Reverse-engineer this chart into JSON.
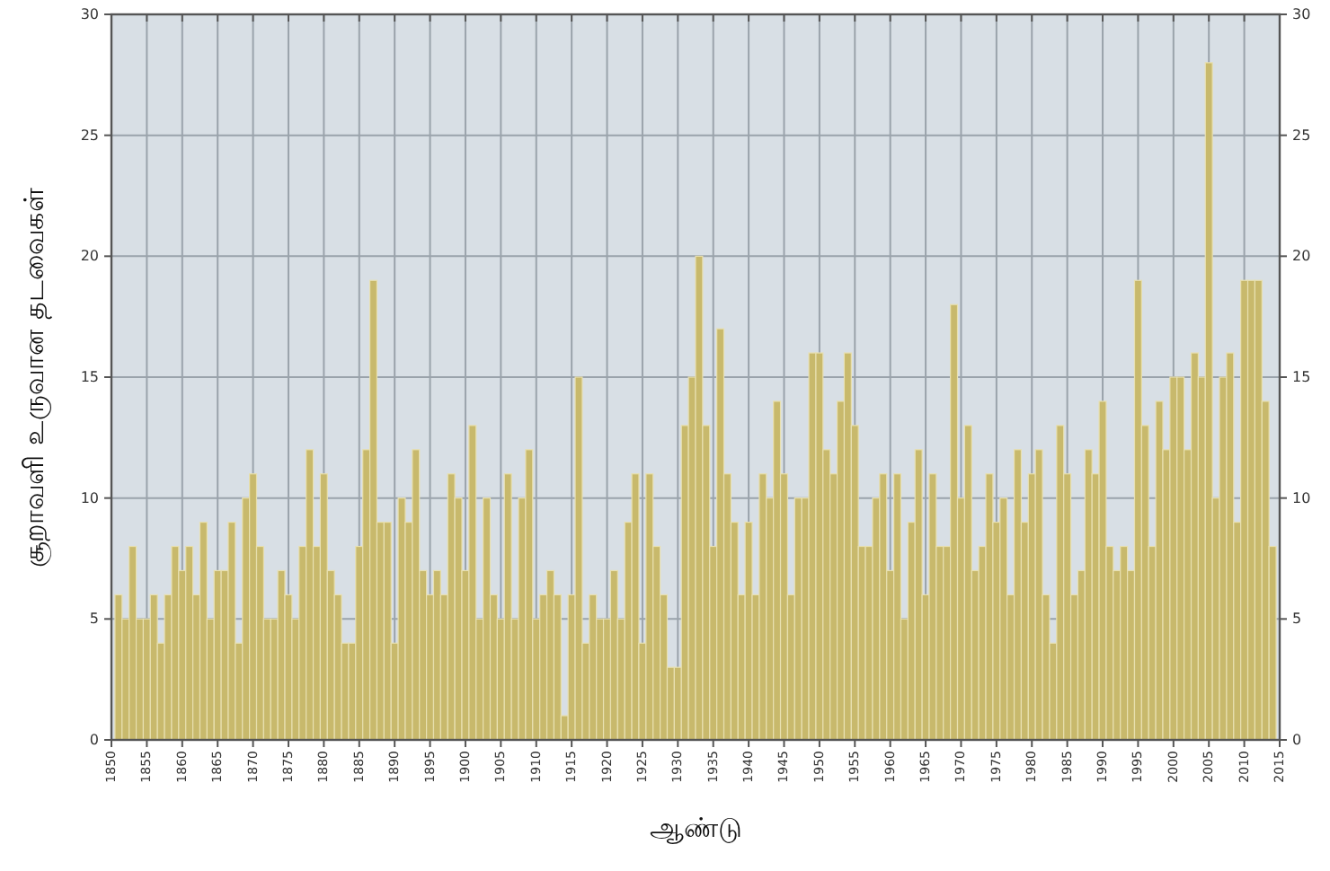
{
  "chart_data": {
    "type": "bar",
    "xlabel": "ஆண்டு",
    "ylabel": "சூறாவளி உருவான தடவைகள்",
    "x": [
      1851,
      1852,
      1853,
      1854,
      1855,
      1856,
      1857,
      1858,
      1859,
      1860,
      1861,
      1862,
      1863,
      1864,
      1865,
      1866,
      1867,
      1868,
      1869,
      1870,
      1871,
      1872,
      1873,
      1874,
      1875,
      1876,
      1877,
      1878,
      1879,
      1880,
      1881,
      1882,
      1883,
      1884,
      1885,
      1886,
      1887,
      1888,
      1889,
      1890,
      1891,
      1892,
      1893,
      1894,
      1895,
      1896,
      1897,
      1898,
      1899,
      1900,
      1901,
      1902,
      1903,
      1904,
      1905,
      1906,
      1907,
      1908,
      1909,
      1910,
      1911,
      1912,
      1913,
      1914,
      1915,
      1916,
      1917,
      1918,
      1919,
      1920,
      1921,
      1922,
      1923,
      1924,
      1925,
      1926,
      1927,
      1928,
      1929,
      1930,
      1931,
      1932,
      1933,
      1934,
      1935,
      1936,
      1937,
      1938,
      1939,
      1940,
      1941,
      1942,
      1943,
      1944,
      1945,
      1946,
      1947,
      1948,
      1949,
      1950,
      1951,
      1952,
      1953,
      1954,
      1955,
      1956,
      1957,
      1958,
      1959,
      1960,
      1961,
      1962,
      1963,
      1964,
      1965,
      1966,
      1967,
      1968,
      1969,
      1970,
      1971,
      1972,
      1973,
      1974,
      1975,
      1976,
      1977,
      1978,
      1979,
      1980,
      1981,
      1982,
      1983,
      1984,
      1985,
      1986,
      1987,
      1988,
      1989,
      1990,
      1991,
      1992,
      1993,
      1994,
      1995,
      1996,
      1997,
      1998,
      1999,
      2000,
      2001,
      2002,
      2003,
      2004,
      2005,
      2006,
      2007,
      2008,
      2009,
      2010,
      2011,
      2012,
      2013,
      2014
    ],
    "values": [
      6,
      5,
      8,
      5,
      5,
      6,
      4,
      6,
      8,
      7,
      8,
      6,
      9,
      5,
      7,
      7,
      9,
      4,
      10,
      11,
      8,
      5,
      5,
      7,
      6,
      5,
      8,
      12,
      8,
      11,
      7,
      6,
      4,
      4,
      8,
      12,
      19,
      9,
      9,
      4,
      10,
      9,
      12,
      7,
      6,
      7,
      6,
      11,
      10,
      7,
      13,
      5,
      10,
      6,
      5,
      11,
      5,
      10,
      12,
      5,
      6,
      7,
      6,
      1,
      6,
      15,
      4,
      6,
      5,
      5,
      7,
      5,
      9,
      11,
      4,
      11,
      8,
      6,
      3,
      3,
      13,
      15,
      20,
      13,
      8,
      17,
      11,
      9,
      6,
      9,
      6,
      11,
      10,
      14,
      11,
      6,
      10,
      10,
      16,
      16,
      12,
      11,
      14,
      16,
      13,
      8,
      8,
      10,
      11,
      7,
      11,
      5,
      9,
      12,
      6,
      11,
      8,
      8,
      18,
      10,
      13,
      7,
      8,
      11,
      9,
      10,
      6,
      12,
      9,
      11,
      12,
      6,
      4,
      13,
      11,
      6,
      7,
      12,
      11,
      14,
      8,
      7,
      8,
      7,
      19,
      13,
      8,
      14,
      12,
      15,
      15,
      12,
      16,
      15,
      28,
      10,
      15,
      16,
      9,
      19,
      19,
      19,
      14,
      8
    ],
    "color": "#c8b96c",
    "xlim": [
      1850,
      2015
    ],
    "xticks": [
      1850,
      1855,
      1860,
      1865,
      1870,
      1875,
      1880,
      1885,
      1890,
      1895,
      1900,
      1905,
      1910,
      1915,
      1920,
      1925,
      1930,
      1935,
      1940,
      1945,
      1950,
      1955,
      1960,
      1965,
      1970,
      1975,
      1980,
      1985,
      1990,
      1995,
      2000,
      2005,
      2010,
      2015
    ],
    "ylim": [
      0,
      30
    ],
    "yticks": [
      0,
      5,
      10,
      15,
      20,
      25,
      30
    ],
    "y2lim": [
      0,
      30
    ],
    "y2ticks": [
      0,
      5,
      10,
      15,
      20,
      25,
      30
    ],
    "grid": true
  }
}
